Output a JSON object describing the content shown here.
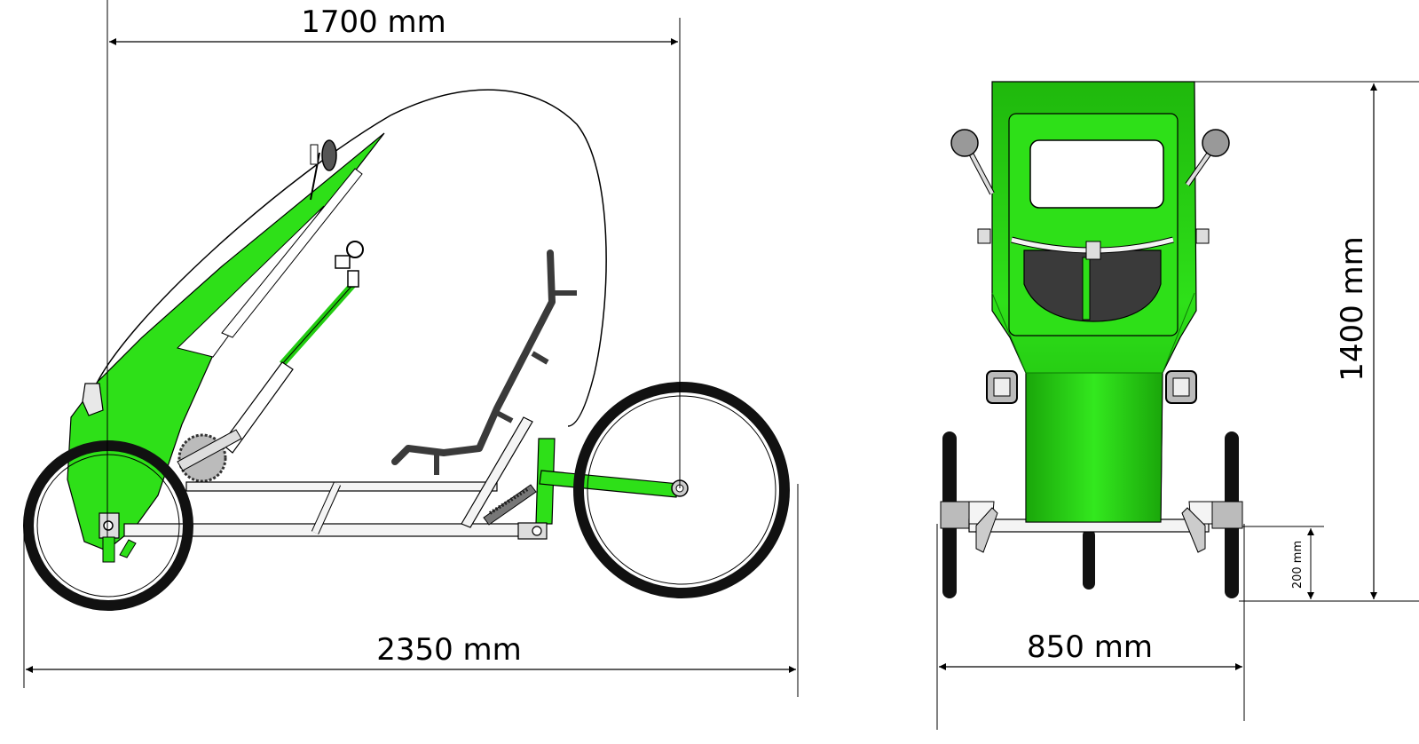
{
  "dimensions": {
    "wheelbase_label": "1700 mm",
    "overall_length_label": "2350 mm",
    "overall_width_label": "850 mm",
    "overall_height_label": "1400 mm",
    "ground_clearance_label": "200 mm"
  },
  "colors": {
    "body_green": "#22dd11",
    "body_green_dark": "#16a80a",
    "frame_white": "#f4f4f4",
    "tire_black": "#111111",
    "line_black": "#000000",
    "seat_grey": "#3a3a3a"
  }
}
